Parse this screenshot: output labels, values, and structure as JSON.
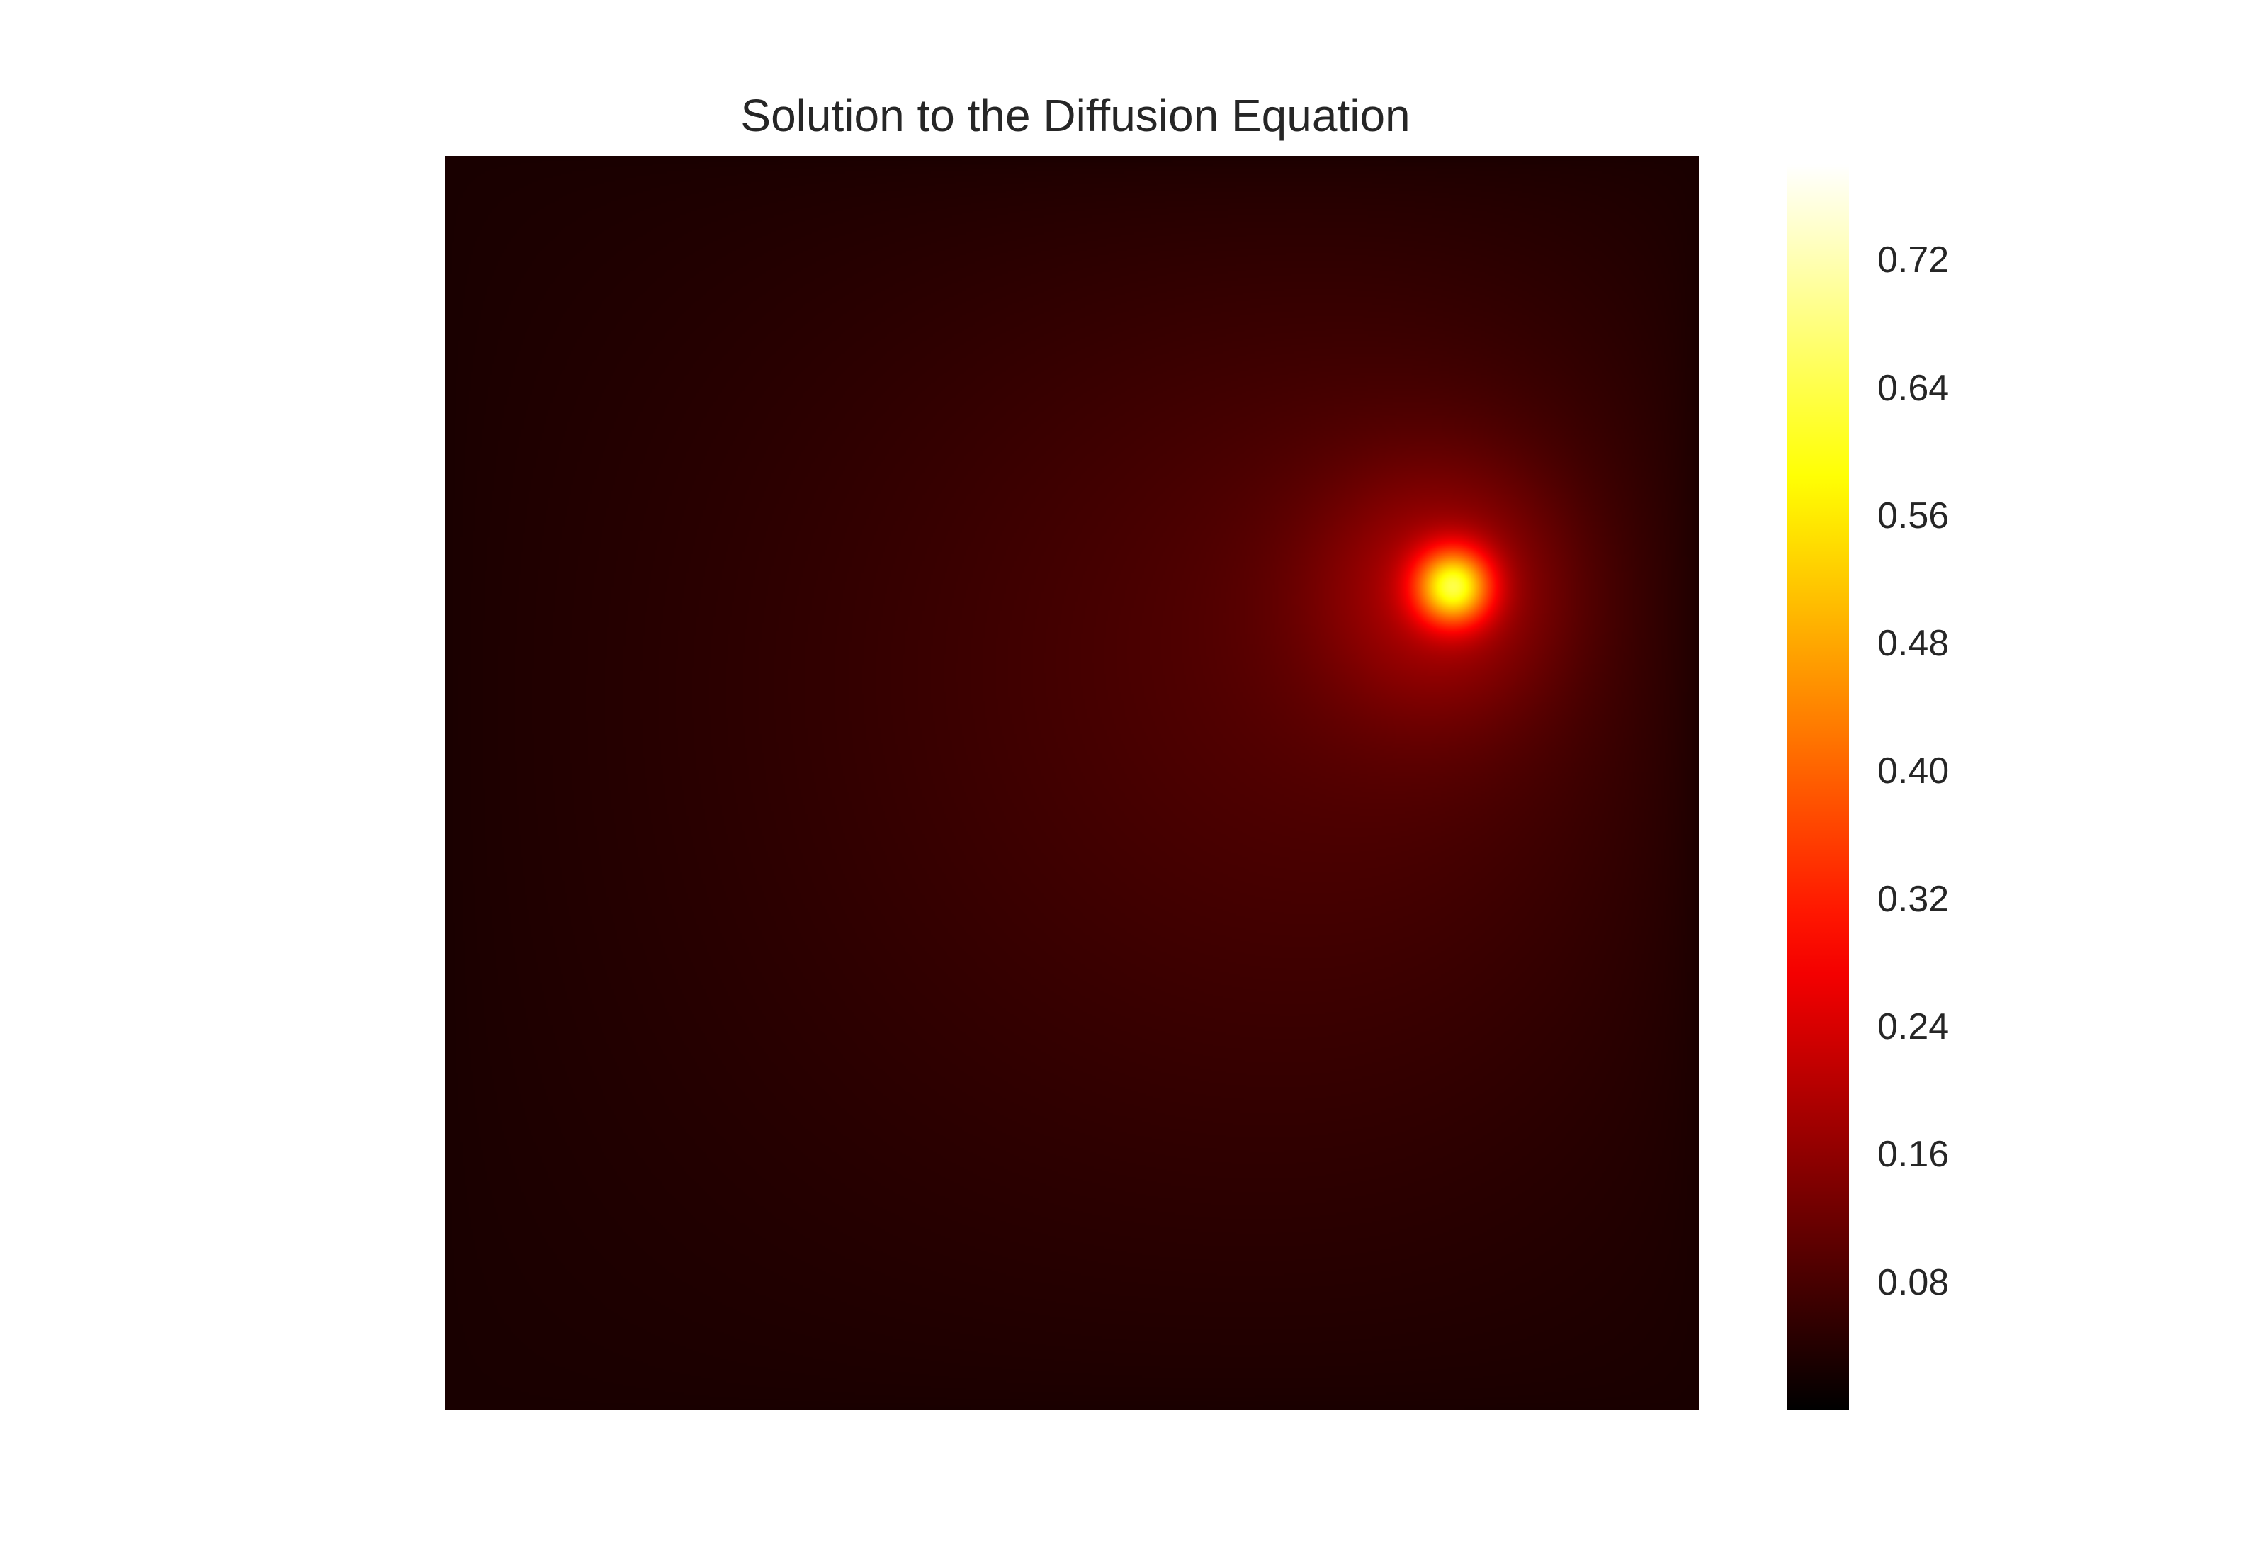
{
  "chart_data": {
    "type": "heatmap",
    "title": "Solution to the Diffusion Equation",
    "xlabel": "",
    "ylabel": "",
    "colormap": "hot",
    "grid": false,
    "peak": {
      "x": 0.805,
      "y": 0.343,
      "value": 0.78
    },
    "value_range": [
      0.0,
      0.78
    ],
    "colorbar": {
      "ticks": [
        0.08,
        0.16,
        0.24,
        0.32,
        0.4,
        0.48,
        0.56,
        0.64,
        0.72
      ],
      "tick_labels": [
        "0.08",
        "0.16",
        "0.24",
        "0.32",
        "0.40",
        "0.48",
        "0.56",
        "0.64",
        "0.72"
      ]
    }
  }
}
